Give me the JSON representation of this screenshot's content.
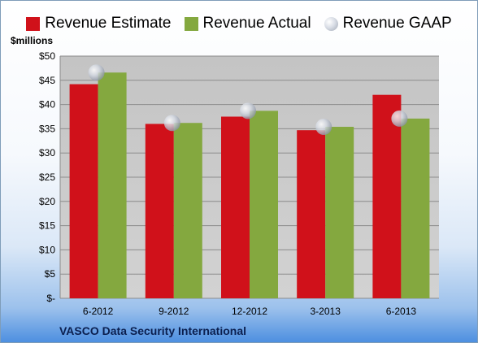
{
  "legend": {
    "estimate": "Revenue Estimate",
    "actual": "Revenue Actual",
    "gaap": "Revenue GAAP"
  },
  "unit_label": "$millions",
  "footer": "VASCO Data Security International",
  "colors": {
    "estimate": "#d0111a",
    "actual": "#84a83f",
    "gaap": "#c8ced8",
    "plot_bg": "#c9c9c9"
  },
  "chart_data": {
    "type": "bar",
    "title": "",
    "xlabel": "",
    "ylabel": "$millions",
    "categories": [
      "6-2012",
      "9-2012",
      "12-2012",
      "3-2013",
      "6-2013"
    ],
    "series": [
      {
        "name": "Revenue Estimate",
        "kind": "bar",
        "values": [
          44.2,
          36.0,
          37.5,
          34.7,
          42.0
        ]
      },
      {
        "name": "Revenue Actual",
        "kind": "bar",
        "values": [
          46.6,
          36.2,
          38.7,
          35.4,
          37.1
        ]
      },
      {
        "name": "Revenue GAAP",
        "kind": "marker",
        "values": [
          46.6,
          36.2,
          38.7,
          35.4,
          37.1
        ]
      }
    ],
    "ylim": [
      0,
      50
    ],
    "yticks": [
      0,
      5,
      10,
      15,
      20,
      25,
      30,
      35,
      40,
      45,
      50
    ],
    "ytick_labels": [
      "$-",
      "$5",
      "$10",
      "$15",
      "$20",
      "$25",
      "$30",
      "$35",
      "$40",
      "$45",
      "$50"
    ],
    "grid": true,
    "legend_position": "top"
  }
}
